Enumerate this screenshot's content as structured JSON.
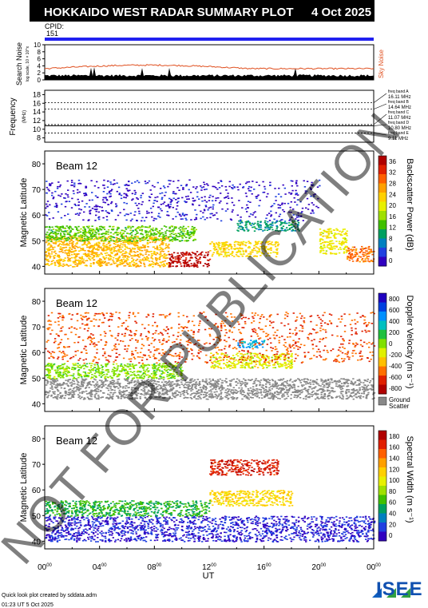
{
  "header": {
    "title": "HOKKAIDO WEST RADAR SUMMARY PLOT",
    "date": "4 Oct 2025",
    "cpid_label": "CPID:",
    "cpid_value": "151"
  },
  "noise_panel": {
    "ylabel_main": "Search Noise",
    "ylabel_sub": "log scale, 10 × 10^x",
    "right_label": "Sky Noise",
    "yticks": [
      "10",
      "8",
      "6",
      "4",
      "2",
      "0"
    ],
    "colors": {
      "sky_noise": "#e05020",
      "search_noise": "#000000"
    }
  },
  "frequency_panel": {
    "ylabel_main": "Frequency",
    "ylabel_sub": "(MHz)",
    "yticks": [
      "18",
      "16",
      "14",
      "12",
      "10",
      "8"
    ],
    "bands": [
      {
        "label": "freq band A",
        "value": "16.11 MHz"
      },
      {
        "label": "freq band B",
        "value": "14.64 MHz"
      },
      {
        "label": "freq band C",
        "value": "11.07 MHz"
      },
      {
        "label": "freq band D",
        "value": "10.80 MHz"
      },
      {
        "label": "freq band E",
        "value": "9.11 MHz"
      }
    ]
  },
  "panels": [
    {
      "beam_label": "Beam 12",
      "ylabel": "Magnetic Latitude",
      "yticks": [
        "80",
        "70",
        "60",
        "50",
        "40"
      ],
      "colorbar_label": "Backscatter Power (dB)",
      "colorbar_ticks": [
        "36",
        "32",
        "28",
        "24",
        "20",
        "16",
        "12",
        "8",
        "4",
        "0"
      ],
      "colorbar_colors": [
        "#b00000",
        "#e02000",
        "#ff6000",
        "#ffa000",
        "#ffd000",
        "#e8f000",
        "#a0e000",
        "#40c000",
        "#00a060",
        "#0080c0",
        "#2040e0",
        "#3000c0"
      ],
      "legend_extra": []
    },
    {
      "beam_label": "Beam 12",
      "ylabel": "Magnetic Latitude",
      "yticks": [
        "80",
        "70",
        "60",
        "50",
        "40"
      ],
      "colorbar_label": "Doppler Velocity (m s⁻¹)",
      "colorbar_ticks": [
        "800",
        "600",
        "400",
        "200",
        "0",
        "-200",
        "-400",
        "-600",
        "-800"
      ],
      "colorbar_colors": [
        "#2000c0",
        "#0040e0",
        "#0090ff",
        "#00c0c0",
        "#20c040",
        "#80e000",
        "#e0f000",
        "#ffc000",
        "#ff7000",
        "#e02000",
        "#b00000"
      ],
      "legend_extra": [
        "Ground",
        "Scatter"
      ]
    },
    {
      "beam_label": "Beam 12",
      "ylabel": "Magnetic Latitude",
      "yticks": [
        "80",
        "70",
        "60",
        "50",
        "40"
      ],
      "colorbar_label": "Spectral Width (m s⁻¹)",
      "colorbar_ticks": [
        "180",
        "160",
        "140",
        "120",
        "100",
        "80",
        "60",
        "40",
        "20",
        "0"
      ],
      "colorbar_colors": [
        "#b00000",
        "#e02000",
        "#ff6000",
        "#ffa000",
        "#ffd000",
        "#e8f000",
        "#a0e000",
        "#40c000",
        "#00a060",
        "#0080c0",
        "#2040e0",
        "#3000c0"
      ],
      "legend_extra": []
    }
  ],
  "xaxis": {
    "label": "UT",
    "ticks": [
      "00",
      "04",
      "08",
      "12",
      "16",
      "20",
      "00"
    ],
    "superscript": "00"
  },
  "watermark": "NOT FOR PUBLICATION",
  "footer": {
    "credit": "Quick look plot created by sddata.adm",
    "timestamp": "01:23 UT  5 Oct 2025",
    "logo": "ISEE"
  },
  "chart_data": {
    "type": "heatmap",
    "title": "HOKKAIDO WEST RADAR SUMMARY PLOT",
    "x_range_hours": [
      0,
      24
    ],
    "y_range_mlat": [
      37,
      85
    ],
    "panels": [
      {
        "quantity": "Backscatter Power (dB)",
        "range": [
          0,
          36
        ],
        "regions": [
          {
            "t": [
              0,
              9
            ],
            "lat": [
              40,
              52
            ],
            "value": 24
          },
          {
            "t": [
              0,
              11
            ],
            "lat": [
              50,
              56
            ],
            "value": 14
          },
          {
            "t": [
              9,
              12
            ],
            "lat": [
              40,
              46
            ],
            "value": 34
          },
          {
            "t": [
              12,
              17
            ],
            "lat": [
              44,
              50
            ],
            "value": 22
          },
          {
            "t": [
              14,
              18.5
            ],
            "lat": [
              54,
              58
            ],
            "value": 10
          },
          {
            "t": [
              20,
              22
            ],
            "lat": [
              45,
              55
            ],
            "value": 20
          },
          {
            "t": [
              22,
              24
            ],
            "lat": [
              42,
              48
            ],
            "value": 28
          },
          {
            "t": [
              0,
              20
            ],
            "lat": [
              58,
              74
            ],
            "value": 2
          }
        ]
      },
      {
        "quantity": "Doppler Velocity (m s-1)",
        "range": [
          -800,
          800
        ],
        "regions": [
          {
            "t": [
              0,
              24
            ],
            "lat": [
              42,
              50
            ],
            "value": "ground"
          },
          {
            "t": [
              12,
              18
            ],
            "lat": [
              54,
              60
            ],
            "value": -150
          },
          {
            "t": [
              0,
              10
            ],
            "lat": [
              50,
              56
            ],
            "value": 0
          },
          {
            "t": [
              14,
              16
            ],
            "lat": [
              62,
              65
            ],
            "value": 400
          },
          {
            "t": [
              0,
              24
            ],
            "lat": [
              56,
              76
            ],
            "value": -500
          }
        ]
      },
      {
        "quantity": "Spectral Width (m s-1)",
        "range": [
          0,
          180
        ],
        "regions": [
          {
            "t": [
              0,
              24
            ],
            "lat": [
              40,
              50
            ],
            "value": 15
          },
          {
            "t": [
              12,
              18
            ],
            "lat": [
              54,
              60
            ],
            "value": 110
          },
          {
            "t": [
              12,
              17
            ],
            "lat": [
              66,
              72
            ],
            "value": 160
          },
          {
            "t": [
              0,
              12
            ],
            "lat": [
              50,
              56
            ],
            "value": 60
          }
        ]
      }
    ],
    "frequency_bands_mhz": [
      16.11,
      14.64,
      11.07,
      10.8,
      9.11
    ],
    "noise_ylim": [
      0,
      10
    ]
  }
}
